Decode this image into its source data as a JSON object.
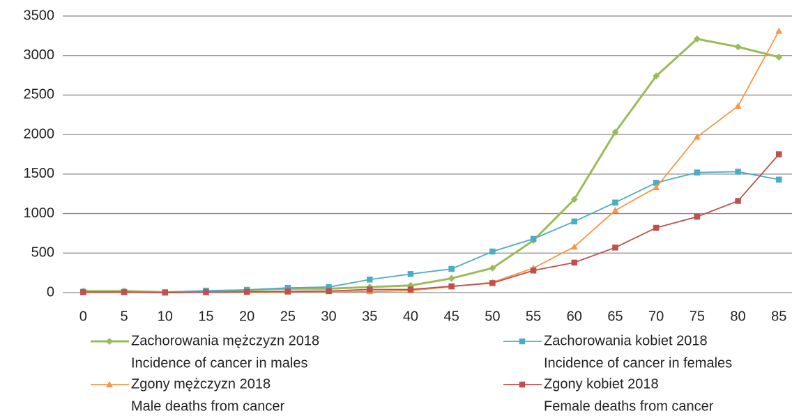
{
  "chart_data": {
    "type": "line",
    "categories": [
      "0",
      "5",
      "10",
      "15",
      "20",
      "25",
      "30",
      "35",
      "40",
      "45",
      "50",
      "55",
      "60",
      "65",
      "70",
      "75",
      "80",
      "85"
    ],
    "ylim": [
      0,
      3500
    ],
    "yticks": [
      0,
      500,
      1000,
      1500,
      2000,
      2500,
      3000,
      3500
    ],
    "grid": true,
    "legend": "bottom",
    "series": [
      {
        "name": "Zachorowania mężczyzn 2018",
        "description": "Incidence of cancer in males",
        "color": "#9bbb59",
        "marker": "diamond",
        "values": [
          20,
          20,
          5,
          15,
          30,
          50,
          50,
          70,
          90,
          180,
          310,
          660,
          1180,
          2030,
          2740,
          3210,
          3110,
          2980
        ]
      },
      {
        "name": "Zachorowania kobiet 2018",
        "description": "Incidence of cancer in females",
        "color": "#4bacc6",
        "marker": "square",
        "values": [
          10,
          10,
          5,
          25,
          35,
          60,
          70,
          165,
          235,
          300,
          520,
          680,
          900,
          1140,
          1390,
          1520,
          1530,
          1430
        ]
      },
      {
        "name": "Zgony mężczyzn 2018",
        "description": "Male deaths from cancer",
        "color": "#f79646",
        "marker": "triangle",
        "values": [
          5,
          5,
          0,
          5,
          5,
          10,
          15,
          15,
          25,
          75,
          130,
          310,
          580,
          1040,
          1330,
          1970,
          2360,
          3310
        ]
      },
      {
        "name": "Zgony kobiet 2018",
        "description": "Female deaths from cancer",
        "color": "#c0504d",
        "marker": "square",
        "values": [
          5,
          5,
          0,
          5,
          10,
          15,
          20,
          40,
          40,
          80,
          120,
          280,
          380,
          570,
          820,
          960,
          1160,
          1750
        ]
      }
    ]
  }
}
